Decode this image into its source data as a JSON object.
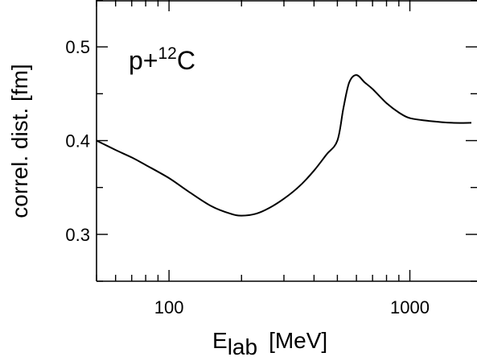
{
  "chart_data": {
    "type": "line",
    "title": "",
    "xlabel": "E",
    "xlabel_sub": "lab",
    "xlabel_unit": "[MeV]",
    "ylabel": "correl. dist. [fm]",
    "xscale": "log",
    "xlim": [
      50,
      1900
    ],
    "ylim": [
      0.25,
      0.55
    ],
    "xticks": [
      100,
      1000
    ],
    "xtick_labels": [
      "100",
      "1000"
    ],
    "yticks": [
      0.3,
      0.4,
      0.5
    ],
    "ytick_labels": [
      "0.3",
      "0.4",
      "0.5"
    ],
    "grid": false,
    "annotation": {
      "base": "p+",
      "sup": "12",
      "tail": "C"
    },
    "series": [
      {
        "x": [
          50,
          60,
          70,
          80,
          100,
          120,
          150,
          180,
          200,
          230,
          260,
          300,
          350,
          400,
          450,
          500,
          530,
          560,
          600,
          650,
          700,
          800,
          900,
          1000,
          1200,
          1500,
          1800
        ],
        "y": [
          0.4,
          0.39,
          0.382,
          0.374,
          0.36,
          0.346,
          0.33,
          0.322,
          0.32,
          0.322,
          0.328,
          0.338,
          0.352,
          0.368,
          0.385,
          0.4,
          0.435,
          0.462,
          0.47,
          0.462,
          0.455,
          0.44,
          0.43,
          0.424,
          0.421,
          0.419,
          0.419
        ]
      }
    ]
  }
}
